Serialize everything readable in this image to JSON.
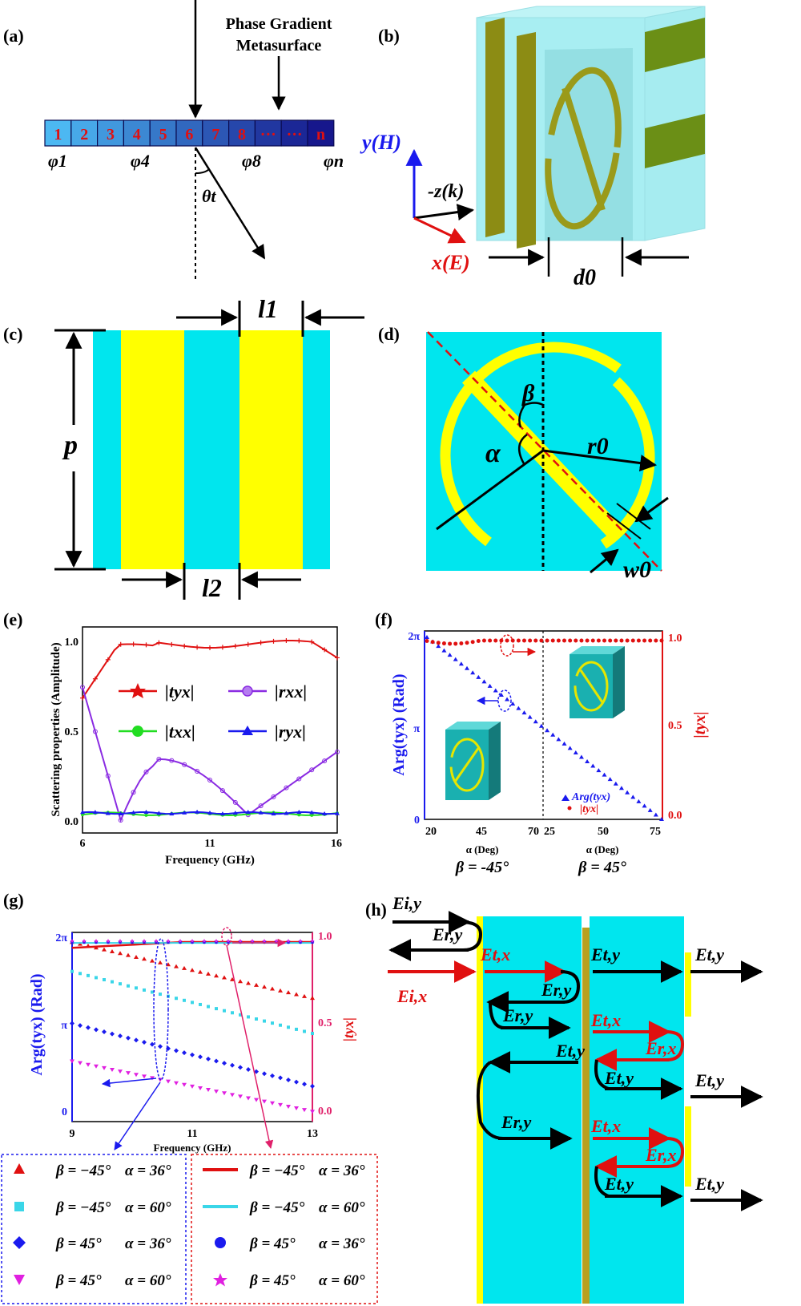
{
  "colors": {
    "cyan": "#00e6ee",
    "yellow": "#ffff00",
    "blue": "#1a1aee",
    "red": "#e01010",
    "cell_light": "#4cb8f2",
    "cell_dark": "#16178c",
    "magenta": "#e020e0",
    "green": "#22dd22",
    "purple": "#8a2be2"
  },
  "panels": {
    "a": "(a)",
    "b": "(b)",
    "c": "(c)",
    "d": "(d)",
    "e": "(e)",
    "f": "(f)",
    "g": "(g)",
    "h": "(h)"
  },
  "panel_a": {
    "title_line1": "Phase Gradient",
    "title_line2": "Metasurface",
    "cells": [
      "1",
      "2",
      "3",
      "4",
      "5",
      "6",
      "7",
      "8",
      "···",
      "···",
      "n"
    ],
    "phases": [
      "φ1",
      "φ4",
      "φ8",
      "φn"
    ],
    "angle": "θt"
  },
  "panel_b": {
    "y_axis": "y(H)",
    "z_axis": "-z(k)",
    "x_axis": "x(E)",
    "thickness": "d0"
  },
  "panel_c": {
    "l1": "l1",
    "l2": "l2",
    "p": "p"
  },
  "panel_d": {
    "alpha": "α",
    "beta": "β",
    "r0": "r0",
    "w0": "w0"
  },
  "panel_e": {
    "ylabel": "Scattering properties (Amplitude)",
    "xlabel": "Frequency (GHz)",
    "xticks": [
      "6",
      "11",
      "16"
    ],
    "yticks": [
      "0.0",
      "0.5",
      "1.0"
    ],
    "legend": [
      {
        "label": "|tyx|",
        "color": "#e01010"
      },
      {
        "label": "|rxx|",
        "color": "#8a2be2"
      },
      {
        "label": "|txx|",
        "color": "#22dd22"
      },
      {
        "label": "|ryx|",
        "color": "#1a1aee"
      }
    ]
  },
  "panel_f": {
    "ylabel_left": "Arg(tyx)  (Rad)",
    "ylabel_right": "|tyx|",
    "yticks_left": [
      "0",
      "π",
      "2π"
    ],
    "yticks_right": [
      "0.0",
      "0.5",
      "1.0"
    ],
    "xticks": [
      "20",
      "45",
      "70",
      "25",
      "50",
      "75"
    ],
    "xlabel_left": "α (Deg)",
    "xlabel_right": "α (Deg)",
    "beta_left": "β = -45°",
    "beta_right": "β = 45°",
    "legend": [
      "Arg(tyx)",
      "|tyx|"
    ]
  },
  "panel_g": {
    "ylabel_left": "Arg(tyx)  (Rad)",
    "ylabel_right": "|tyx|",
    "yticks_left": [
      "0",
      "π",
      "2π"
    ],
    "yticks_right": [
      "0.0",
      "0.5",
      "1.0"
    ],
    "xticks": [
      "9",
      "11",
      "13"
    ],
    "xlabel": "Frequency (GHz)",
    "legend_left": [
      {
        "beta": "β = −45°",
        "alpha": "α = 36°"
      },
      {
        "beta": "β = −45°",
        "alpha": "α = 60°"
      },
      {
        "beta": "β = 45°",
        "alpha": "α = 36°"
      },
      {
        "beta": "β = 45°",
        "alpha": "α = 60°"
      }
    ],
    "legend_right": [
      {
        "beta": "β = −45°",
        "alpha": "α = 36°"
      },
      {
        "beta": "β = −45°",
        "alpha": "α = 60°"
      },
      {
        "beta": "β = 45°",
        "alpha": "α = 36°"
      },
      {
        "beta": "β = 45°",
        "alpha": "α = 60°"
      }
    ]
  },
  "panel_h": {
    "Eiy": "Ei,y",
    "Ery": "Er,y",
    "Eix": "Ei,x",
    "Etx": "Et,x",
    "Ety": "Et,y",
    "Erx": "Er,x"
  }
}
